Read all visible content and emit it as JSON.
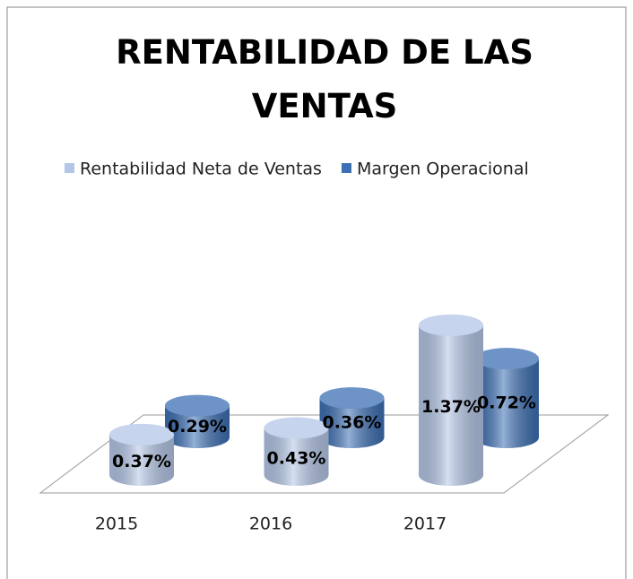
{
  "chart_data": {
    "type": "bar3d",
    "title": "RENTABILIDAD DE LAS VENTAS",
    "categories": [
      "2015",
      "2016",
      "2017"
    ],
    "series": [
      {
        "name": "Rentabilidad Neta de Ventas",
        "color": "#b4c6e7",
        "values": [
          0.37,
          0.43,
          1.37
        ],
        "value_labels": [
          "0.37%",
          "0.43%",
          "1.37%"
        ]
      },
      {
        "name": "Margen Operacional",
        "color": "#3c6fb4",
        "values": [
          0.29,
          0.36,
          0.72
        ],
        "value_labels": [
          "0.29%",
          "0.36%",
          "0.72%"
        ]
      }
    ],
    "legend": "top"
  }
}
